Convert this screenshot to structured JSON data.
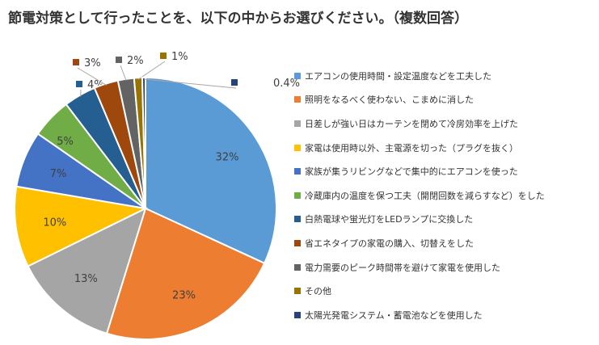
{
  "chart_data": {
    "type": "pie",
    "title": "節電対策として行ったことを、以下の中からお選びください。（複数回答）",
    "categories": [
      "エアコンの使用時間・設定温度などを工夫した",
      "照明をなるべく使わない、こまめに消した",
      "日差しが強い日はカーテンを閉めて冷房効率を上げた",
      "家電は使用時以外、主電源を切った（プラグを抜く）",
      "家族が集うリビングなどで集中的にエアコンを使った",
      "冷蔵庫内の温度を保つ工夫（開閉回数を減らすなど）をした",
      "白熱電球や蛍光灯をLEDランプに交換した",
      "省エネタイプの家電の購入、切替えをした",
      "電力需要のピーク時間帯を避けて家電を使用した",
      "その他",
      "太陽光発電システム・蓄電池などを使用した"
    ],
    "values": [
      32,
      23,
      13,
      10,
      7,
      5,
      4,
      3,
      2,
      1,
      0.4
    ],
    "data_labels": [
      "32%",
      "23%",
      "13%",
      "10%",
      "7%",
      "5%",
      "4%",
      "3%",
      "2%",
      "1%",
      "0.4%"
    ],
    "colors": [
      "#5b9bd5",
      "#ed7d31",
      "#a5a5a5",
      "#ffc000",
      "#4472c4",
      "#70ad47",
      "#255e91",
      "#9e480e",
      "#636363",
      "#997300",
      "#264478"
    ],
    "legend_position": "right"
  }
}
